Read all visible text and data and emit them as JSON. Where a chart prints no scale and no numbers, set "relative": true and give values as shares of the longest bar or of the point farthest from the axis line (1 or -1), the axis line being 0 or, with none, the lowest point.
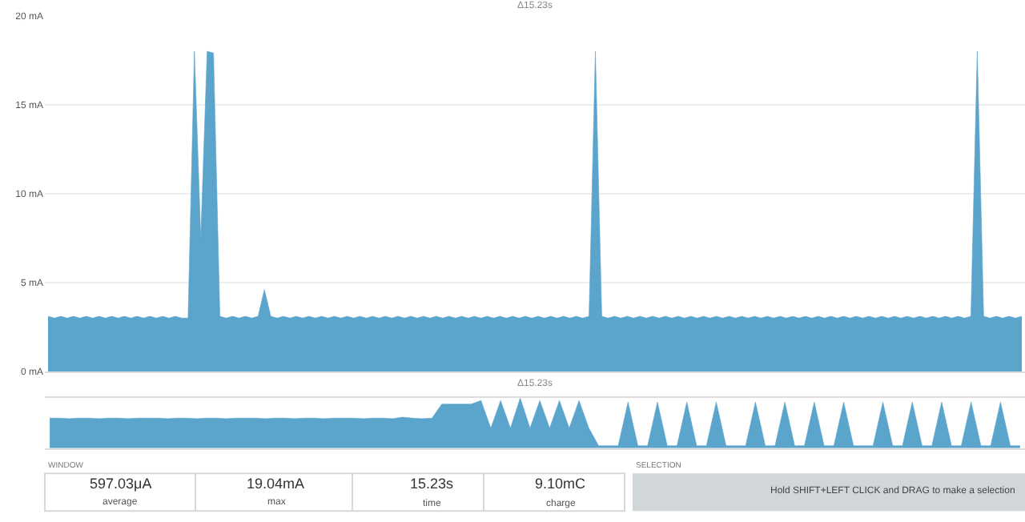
{
  "chart_data": [
    {
      "type": "area",
      "title": "Δ15.23s",
      "color": "#5ba4cc",
      "ylim": [
        0,
        20
      ],
      "yticks": [
        {
          "value": 0,
          "label": "0 mA"
        },
        {
          "value": 5,
          "label": "5 mA"
        },
        {
          "value": 10,
          "label": "10 mA"
        },
        {
          "value": 15,
          "label": "15 mA"
        },
        {
          "value": 20,
          "label": "20 mA"
        }
      ],
      "grid": "y",
      "tick_labels": "y",
      "categories": [
        null,
        null,
        null,
        null,
        null,
        null,
        null,
        null,
        null,
        null,
        null,
        null,
        null,
        null,
        null,
        null,
        null,
        null,
        null,
        null,
        null,
        null,
        null,
        null,
        null,
        null,
        null,
        null,
        null,
        null,
        null,
        null,
        null,
        null,
        null,
        null,
        null,
        null,
        null,
        null,
        null,
        null,
        null,
        null,
        null,
        null,
        null,
        null,
        null,
        null,
        null,
        null,
        null,
        null,
        null,
        null,
        null,
        null,
        null,
        null,
        null,
        null,
        null,
        null,
        null,
        null,
        null,
        null,
        null,
        null,
        null,
        null,
        null,
        null,
        null,
        null,
        null,
        null,
        null,
        null,
        null,
        null,
        null,
        null,
        null,
        null,
        null,
        null,
        null,
        null,
        null,
        null,
        null,
        null,
        null,
        null,
        null,
        null,
        null,
        null,
        null,
        null,
        null,
        null,
        null,
        null,
        null,
        null,
        null,
        null,
        null,
        null,
        null,
        null,
        null,
        null,
        null,
        null,
        null,
        null,
        null,
        null,
        null,
        null,
        null,
        null,
        null,
        null,
        null,
        null,
        null,
        null,
        null,
        null,
        null,
        null,
        null,
        null,
        null,
        null,
        null,
        null,
        null,
        null,
        null,
        null,
        null,
        null,
        null,
        null,
        null,
        null,
        null,
        null
      ],
      "values": [
        3.1,
        3.0,
        3.1,
        3.0,
        3.1,
        3.0,
        3.1,
        3.0,
        3.1,
        3.0,
        3.1,
        3.0,
        3.1,
        3.0,
        3.1,
        3.0,
        3.1,
        3.0,
        3.1,
        3.0,
        3.1,
        3.0,
        3.0,
        18.0,
        7.5,
        18.0,
        17.9,
        3.1,
        3.0,
        3.1,
        3.0,
        3.1,
        3.0,
        3.1,
        4.6,
        3.1,
        3.0,
        3.1,
        3.0,
        3.1,
        3.0,
        3.1,
        3.0,
        3.1,
        3.0,
        3.1,
        3.0,
        3.1,
        3.0,
        3.1,
        3.0,
        3.1,
        3.0,
        3.1,
        3.0,
        3.1,
        3.0,
        3.1,
        3.0,
        3.1,
        3.0,
        3.1,
        3.0,
        3.1,
        3.0,
        3.1,
        3.0,
        3.1,
        3.0,
        3.1,
        3.0,
        3.1,
        3.0,
        3.1,
        3.0,
        3.1,
        3.0,
        3.1,
        3.0,
        3.1,
        3.0,
        3.1,
        3.0,
        3.1,
        3.0,
        3.1,
        18.0,
        3.1,
        3.0,
        3.1,
        3.0,
        3.1,
        3.0,
        3.1,
        3.0,
        3.1,
        3.0,
        3.1,
        3.0,
        3.1,
        3.0,
        3.1,
        3.0,
        3.1,
        3.0,
        3.1,
        3.0,
        3.1,
        3.0,
        3.1,
        3.0,
        3.1,
        3.0,
        3.1,
        3.0,
        3.1,
        3.0,
        3.1,
        3.0,
        3.1,
        3.0,
        3.1,
        3.0,
        3.1,
        3.0,
        3.1,
        3.0,
        3.1,
        3.0,
        3.1,
        3.0,
        3.1,
        3.0,
        3.1,
        3.0,
        3.1,
        3.0,
        3.1,
        3.0,
        3.1,
        3.0,
        3.1,
        3.0,
        3.1,
        3.0,
        3.1,
        18.0,
        3.1,
        3.0,
        3.1,
        3.0,
        3.1,
        3.0,
        3.1
      ]
    },
    {
      "type": "area",
      "title": "Δ15.23s",
      "relative": true,
      "color": "#5ba4cc",
      "tick_labels": false,
      "categories": [
        null,
        null,
        null,
        null,
        null,
        null,
        null,
        null,
        null,
        null,
        null,
        null,
        null,
        null,
        null,
        null,
        null,
        null,
        null,
        null,
        null,
        null,
        null,
        null,
        null,
        null,
        null,
        null,
        null,
        null,
        null,
        null,
        null,
        null,
        null,
        null,
        null,
        null,
        null,
        null,
        null,
        null,
        null,
        null,
        null,
        null,
        null,
        null,
        null,
        null,
        null,
        null,
        null,
        null,
        null,
        null,
        null,
        null,
        null,
        null,
        null,
        null,
        null,
        null,
        null,
        null,
        null,
        null,
        null,
        null,
        null,
        null,
        null,
        null,
        null,
        null,
        null,
        null,
        null,
        null,
        null,
        null,
        null,
        null,
        null,
        null,
        null,
        null,
        null,
        null,
        null,
        null,
        null,
        null,
        null,
        null,
        null,
        null,
        null,
        null
      ],
      "values": [
        0.6,
        0.6,
        0.59,
        0.6,
        0.6,
        0.59,
        0.6,
        0.6,
        0.59,
        0.6,
        0.6,
        0.6,
        0.59,
        0.6,
        0.6,
        0.59,
        0.6,
        0.6,
        0.59,
        0.6,
        0.6,
        0.6,
        0.59,
        0.6,
        0.6,
        0.59,
        0.6,
        0.6,
        0.59,
        0.6,
        0.6,
        0.6,
        0.59,
        0.6,
        0.6,
        0.59,
        0.62,
        0.6,
        0.59,
        0.6,
        0.88,
        0.88,
        0.88,
        0.88,
        0.95,
        0.4,
        0.95,
        0.4,
        1.0,
        0.4,
        0.95,
        0.4,
        0.95,
        0.4,
        0.95,
        0.4,
        0.05,
        0.05,
        0.05,
        0.92,
        0.05,
        0.05,
        0.92,
        0.05,
        0.05,
        0.92,
        0.05,
        0.05,
        0.92,
        0.05,
        0.05,
        0.05,
        0.92,
        0.05,
        0.05,
        0.92,
        0.05,
        0.05,
        0.92,
        0.05,
        0.05,
        0.92,
        0.05,
        0.05,
        0.05,
        0.92,
        0.05,
        0.05,
        0.92,
        0.05,
        0.05,
        0.92,
        0.05,
        0.05,
        0.92,
        0.05,
        0.05,
        0.92,
        0.05,
        0.05
      ]
    },
    {
      "type": "other",
      "annotations": [
        "WINDOW",
        "597.03μA",
        "average",
        "19.04mA",
        "max",
        "15.23s",
        "time",
        "9.10mC",
        "charge",
        "SELECTION",
        "Hold SHIFT+LEFT CLICK and DRAG to make a selection"
      ]
    }
  ]
}
